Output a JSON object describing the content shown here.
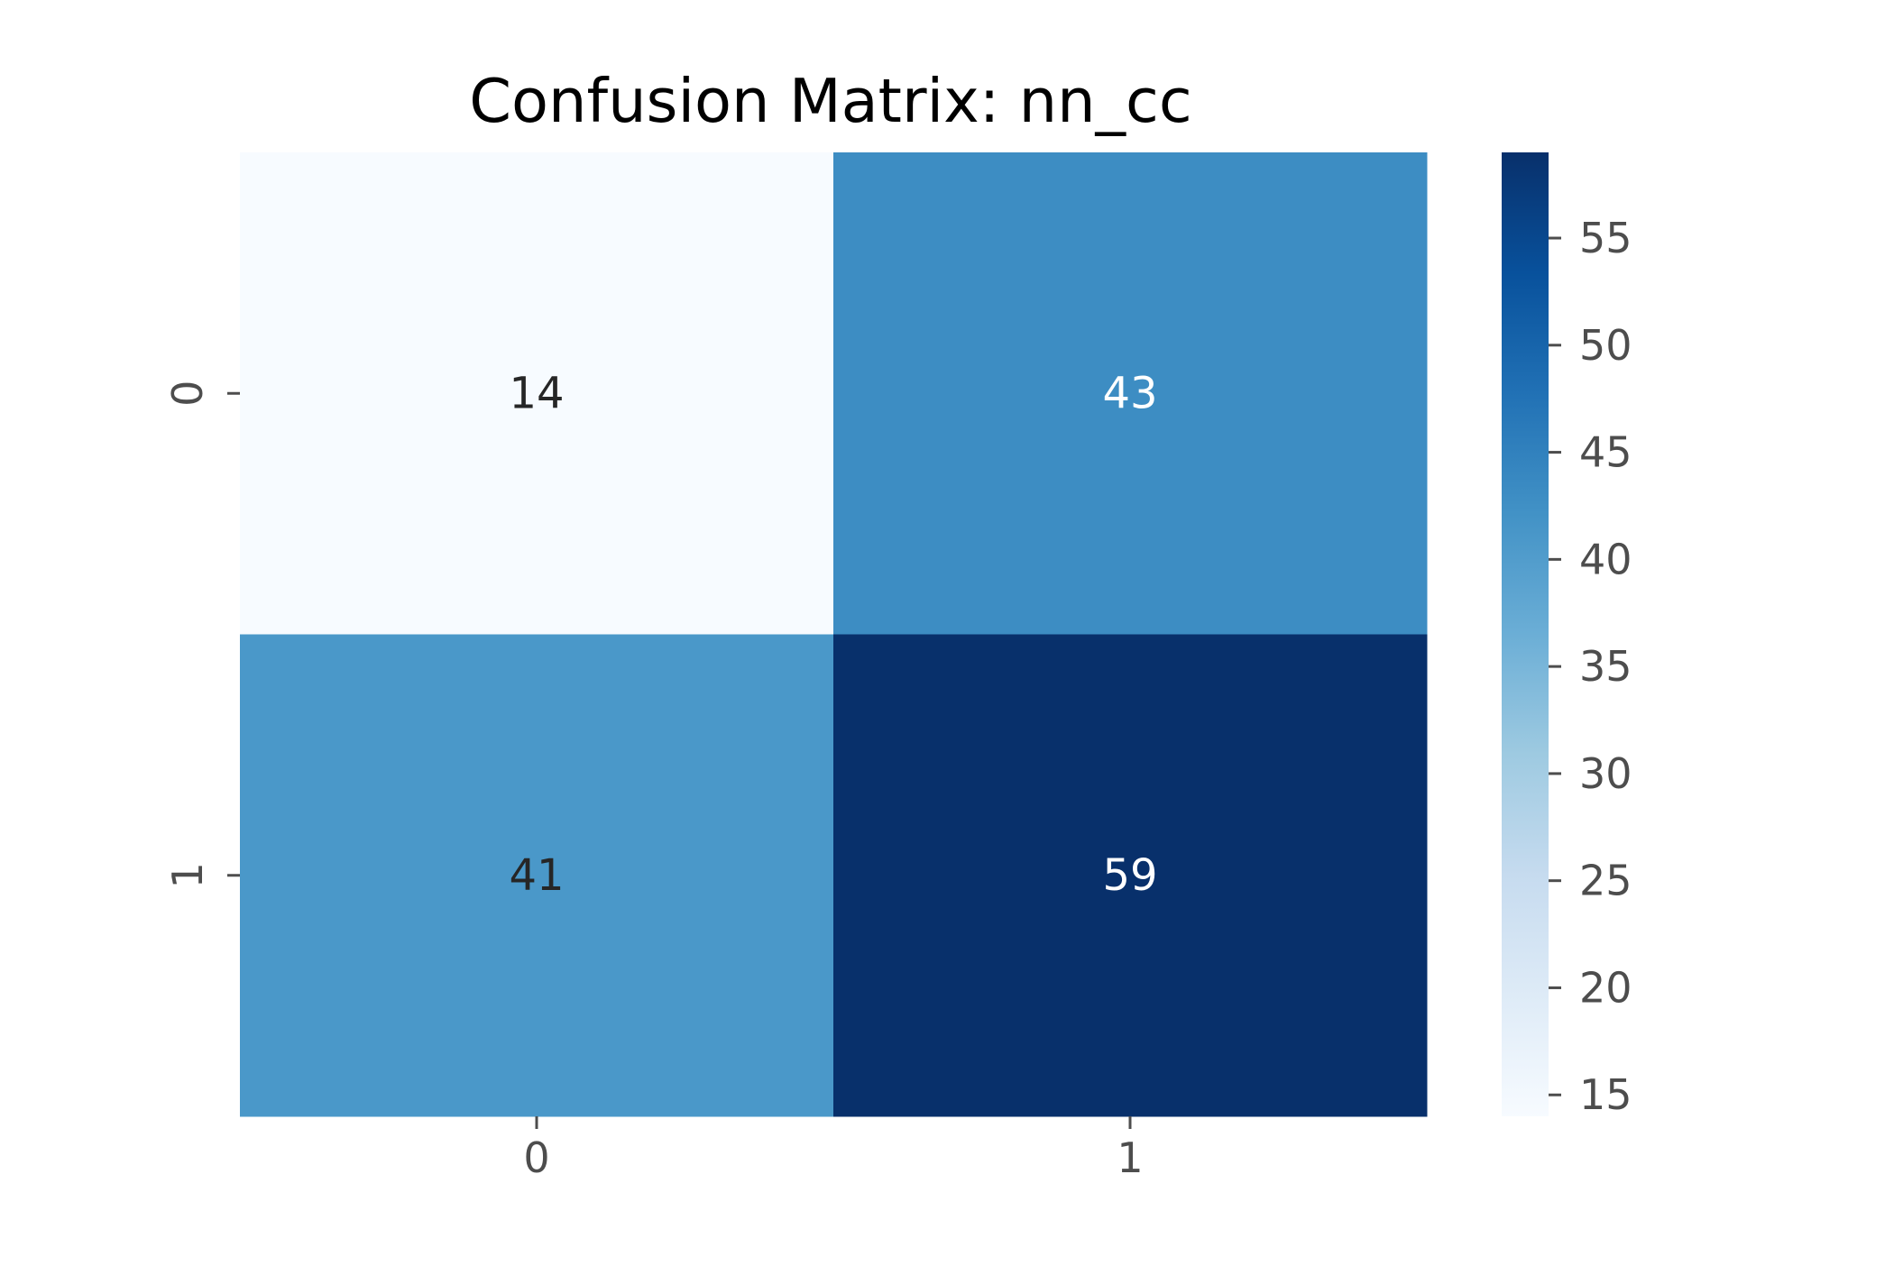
{
  "chart_data": {
    "type": "heatmap",
    "title": "Confusion Matrix: nn_cc",
    "xlabel": "",
    "ylabel": "",
    "x_categories": [
      "0",
      "1"
    ],
    "y_categories": [
      "0",
      "1"
    ],
    "values": [
      [
        14,
        43
      ],
      [
        41,
        59
      ]
    ],
    "annotations": true,
    "colormap": "Blues",
    "colorbar": {
      "range": [
        14,
        59
      ],
      "ticks": [
        15,
        20,
        25,
        30,
        35,
        40,
        45,
        50,
        55
      ],
      "tick_labels": [
        "15",
        "20",
        "25",
        "30",
        "35",
        "40",
        "45",
        "50",
        "55"
      ]
    },
    "colors": {
      "text_dark": "#262626",
      "text_light": "#ffffff",
      "tick_color": "#4d4d4d",
      "title_color": "#000000"
    }
  }
}
